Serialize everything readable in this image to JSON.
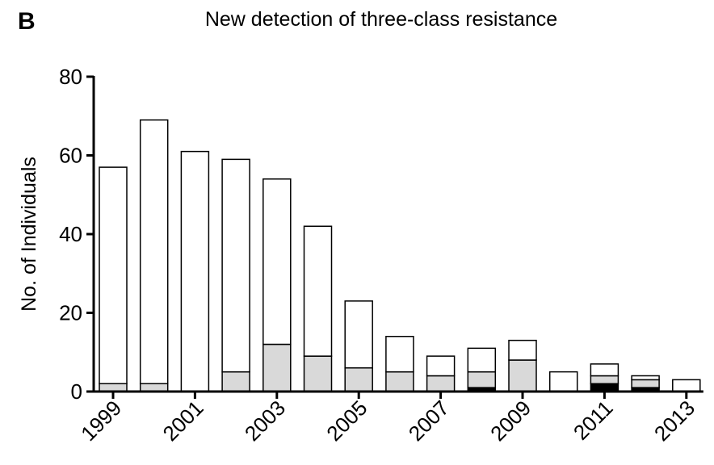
{
  "panel": "B",
  "chart_data": {
    "type": "stacked_bar",
    "title": "New detection of three-class resistance",
    "y_label": "No. of Individuals",
    "categories": [
      "1999",
      null,
      "2001",
      null,
      "2003",
      null,
      "2005",
      null,
      "2007",
      null,
      "2009",
      null,
      "2011",
      null,
      "2013"
    ],
    "series": [
      {
        "color": "#000000",
        "values": [
          0,
          0,
          0,
          0,
          0,
          0,
          0,
          0,
          0,
          1,
          0,
          0,
          2,
          1,
          0
        ]
      },
      {
        "color": "#d9d9d9",
        "values": [
          2,
          2,
          0,
          5,
          12,
          9,
          6,
          5,
          4,
          4,
          8,
          0,
          2,
          2,
          0
        ]
      },
      {
        "color": "#ffffff",
        "values": [
          55,
          67,
          61,
          54,
          42,
          33,
          17,
          9,
          5,
          6,
          5,
          5,
          3,
          1,
          3
        ]
      }
    ],
    "ylim": [
      0,
      80
    ],
    "yticks": [
      0,
      20,
      40,
      60,
      80
    ]
  }
}
